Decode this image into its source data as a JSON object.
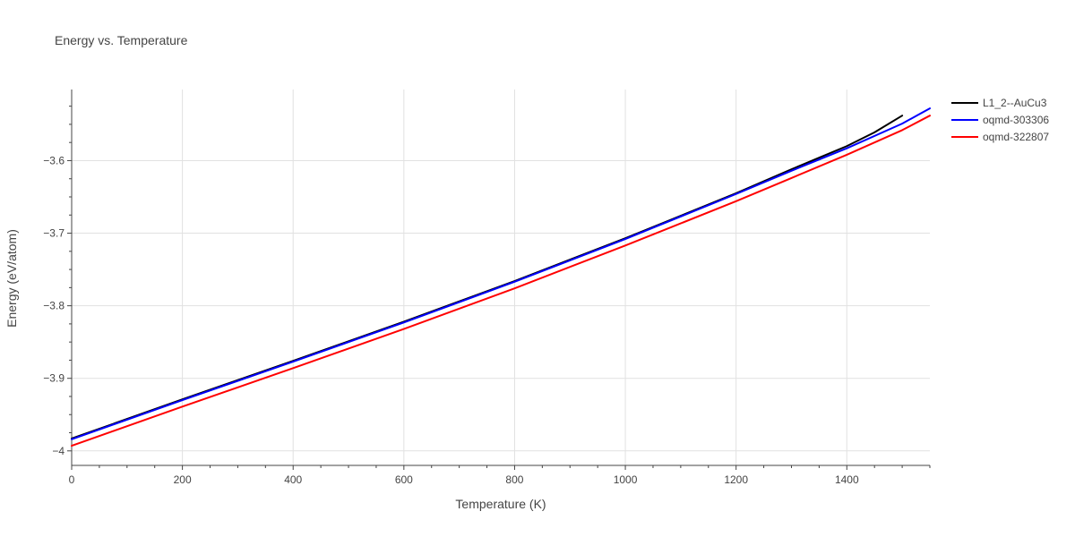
{
  "chart_data": {
    "type": "line",
    "title": "Energy vs. Temperature",
    "xlabel": "Temperature (K)",
    "ylabel": "Energy (eV/atom)",
    "xlim": [
      0,
      1550
    ],
    "ylim": [
      -4.02,
      -3.502
    ],
    "xticks": [
      0,
      200,
      400,
      600,
      800,
      1000,
      1200,
      1400
    ],
    "xtick_labels": [
      "0",
      "200",
      "400",
      "600",
      "800",
      "1000",
      "1200",
      "1400"
    ],
    "yticks": [
      -4.0,
      -3.9,
      -3.8,
      -3.7,
      -3.6
    ],
    "ytick_labels": [
      "−4",
      "−3.9",
      "−3.8",
      "−3.7",
      "−3.6"
    ],
    "grid": true,
    "legend_position": "top-right",
    "series": [
      {
        "name": "L1_2--AuCu3",
        "color": "#000000",
        "x": [
          0,
          200,
          400,
          600,
          800,
          1000,
          1200,
          1300,
          1350,
          1400,
          1450,
          1500
        ],
        "y": [
          -3.983,
          -3.929,
          -3.876,
          -3.822,
          -3.766,
          -3.707,
          -3.645,
          -3.612,
          -3.596,
          -3.58,
          -3.561,
          -3.538
        ]
      },
      {
        "name": "oqmd-303306",
        "color": "#0000ff",
        "x": [
          0,
          200,
          400,
          600,
          800,
          1000,
          1200,
          1300,
          1400,
          1500,
          1550
        ],
        "y": [
          -3.984,
          -3.93,
          -3.877,
          -3.823,
          -3.767,
          -3.708,
          -3.646,
          -3.614,
          -3.583,
          -3.549,
          -3.528
        ]
      },
      {
        "name": "oqmd-322807",
        "color": "#ff0000",
        "x": [
          0,
          200,
          400,
          600,
          800,
          1000,
          1200,
          1300,
          1400,
          1500,
          1550
        ],
        "y": [
          -3.993,
          -3.939,
          -3.886,
          -3.832,
          -3.776,
          -3.717,
          -3.656,
          -3.624,
          -3.592,
          -3.558,
          -3.538
        ]
      }
    ]
  }
}
